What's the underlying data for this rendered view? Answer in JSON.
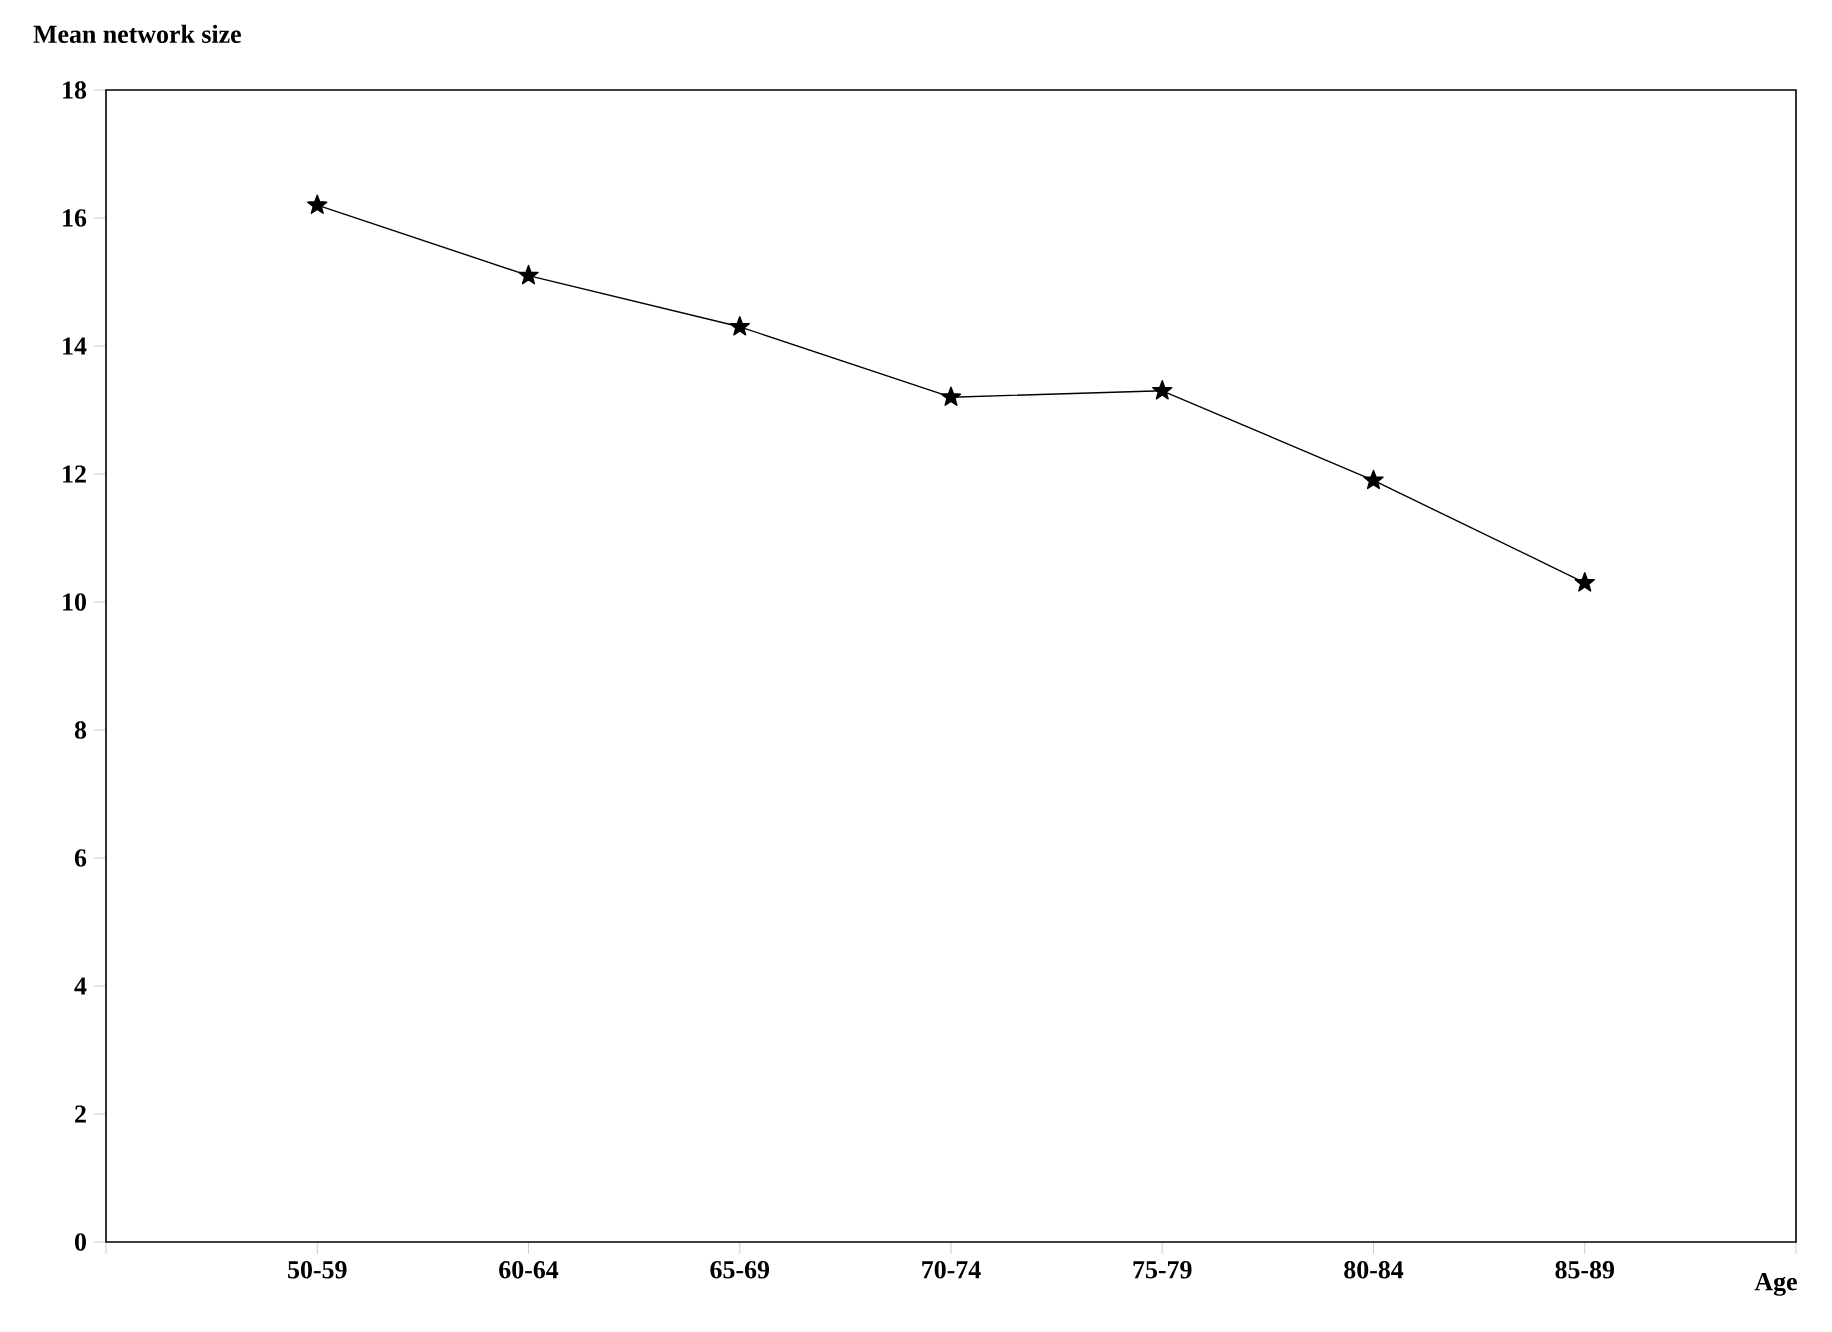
{
  "chart_data": {
    "type": "line",
    "ylabel": "Mean network size",
    "xlabel": "Age",
    "categories": [
      "50-59",
      "60-64",
      "65-69",
      "70-74",
      "75-79",
      "80-84",
      "85-89"
    ],
    "series": [
      {
        "color": "#000000",
        "values": [
          16.2,
          15.1,
          14.3,
          13.2,
          13.3,
          11.9,
          10.3
        ]
      }
    ],
    "ylim": [
      0,
      18
    ],
    "yticks": [
      0,
      2,
      4,
      6,
      8,
      10,
      12,
      14,
      16,
      18
    ],
    "marker": "star",
    "line_style": "solid",
    "grid": false
  }
}
